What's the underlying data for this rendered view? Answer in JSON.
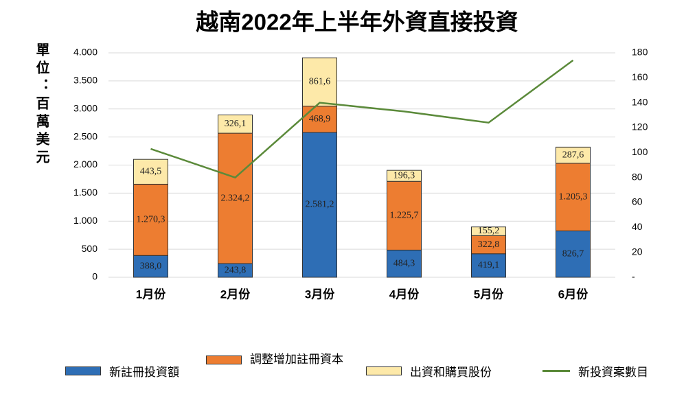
{
  "chart_data": {
    "type": "bar",
    "stacked": true,
    "title": "越南2022年上半年外資直接投資",
    "y_label": "單位：百萬美元",
    "categories": [
      "1月份",
      "2月份",
      "3月份",
      "4月份",
      "5月份",
      "6月份"
    ],
    "series": [
      {
        "name": "新註冊投資額",
        "color": "#2e6eb5",
        "values": [
          388.0,
          243.8,
          2581.2,
          484.3,
          419.1,
          826.7
        ],
        "value_labels": [
          "388,0",
          "243,8",
          "2.581,2",
          "484,3",
          "419,1",
          "826,7"
        ]
      },
      {
        "name": "調整增加註冊資本",
        "color": "#ed7d31",
        "values": [
          1270.3,
          2324.2,
          468.9,
          1225.7,
          322.8,
          1205.3
        ],
        "value_labels": [
          "1.270,3",
          "2.324,2",
          "468,9",
          "1.225,7",
          "322,8",
          "1.205,3"
        ]
      },
      {
        "name": "出資和購買股份",
        "color": "#fde9a9",
        "values": [
          443.5,
          326.1,
          861.6,
          196.3,
          155.2,
          287.6
        ],
        "value_labels": [
          "443,5",
          "326,1",
          "861,6",
          "196,3",
          "155,2",
          "287,6"
        ]
      },
      {
        "name": "新投資案數目",
        "type": "line",
        "axis": "y2",
        "color": "#5b8a3a",
        "values": [
          103,
          80,
          140,
          133,
          124,
          174
        ]
      }
    ],
    "ylim": [
      0,
      4000
    ],
    "yticks": [
      0,
      500,
      {
        "value": 1000,
        "label": "1.000"
      },
      {
        "value": 1500,
        "label": "1.500"
      },
      {
        "value": 2000,
        "label": "2.000"
      },
      {
        "value": 2500,
        "label": "2.500"
      },
      {
        "value": 3000,
        "label": "3.000"
      },
      {
        "value": 3500,
        "label": "3.500"
      },
      {
        "value": 4000,
        "label": "4.000"
      }
    ],
    "y2lim": [
      0,
      180
    ],
    "y2ticks": [
      {
        "value": 0,
        "label": "-"
      },
      20,
      40,
      60,
      80,
      100,
      120,
      140,
      160,
      180
    ],
    "grid": true,
    "legend": "bottom"
  }
}
